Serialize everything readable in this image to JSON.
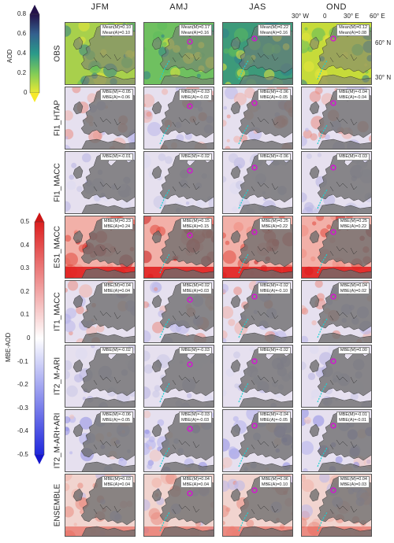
{
  "columns": [
    "JFM",
    "AMJ",
    "JAS",
    "OND"
  ],
  "rows": [
    "OBS",
    "FI1_HTAP",
    "FI1_MACC",
    "ES1_MACC",
    "IT1_MACC",
    "IT2_M-ARI",
    "IT2_M-ARI+ARI",
    "ENSEMBLE"
  ],
  "lon_labels": [
    "30° W",
    "0",
    "30° E",
    "60° E"
  ],
  "lat_labels": [
    "60° N",
    "30° N"
  ],
  "colorbar_obs": {
    "title": "AOD",
    "ticks": [
      "0.8",
      "0.6",
      "0.4",
      "0.2",
      "0"
    ],
    "colors": [
      "#24124a",
      "#33608e",
      "#2a9a8a",
      "#7fcb58",
      "#eaea33"
    ]
  },
  "colorbar_mbe": {
    "title": "MBE-AOD",
    "ticks": [
      "0.5",
      "0.4",
      "0.3",
      "0.2",
      "0.1",
      "0",
      "-0.1",
      "-0.2",
      "-0.3",
      "-0.4",
      "-0.5"
    ],
    "colors": [
      "#dd1f1f",
      "#ffffff",
      "#1f27dd"
    ]
  },
  "panels": [
    [
      "Mean(M)=0.10|Mean(A)=0.10",
      "Mean(M)=0.17|Mean(A)=0.16",
      "Mean(M)=0.22|Mean(A)=0.16",
      "Mean(M)=0.12|Mean(A)=0.08"
    ],
    [
      "MBE(M)=-0.05|MBE(A)=-0.06",
      "MBE(M)=-0.03|MBE(A)=-0.02",
      "MBE(M)=-0.06|MBE(A)=-0.05",
      "MBE(M)=-0.04|MBE(A)=-0.04"
    ],
    [
      "MBE(M)=-0.01",
      "MBE(M)=-0.02",
      "MBE(M)=-0.06",
      "MBE(M)=-0.03"
    ],
    [
      "MBE(M)=0.23|MBE(A)=0.24",
      "MBE(M)=0.15|MBE(A)=0.15",
      "MBE(M)=0.25|MBE(A)=0.22",
      "MBE(M)=0.25|MBE(A)=0.22"
    ],
    [
      "MBE(M)=0.04|MBE(A)=0.04",
      "MBE(M)=0.02|MBE(A)=0.03",
      "MBE(M)=-0.02|MBE(A)=-0.10",
      "MBE(M)=0.04|MBE(A)=0.02"
    ],
    [
      "MBE(M)=-0.02",
      "MBE(M)=-0.03",
      "MBE(M)=-0.02",
      "MBE(M)=0.00"
    ],
    [
      "MBE(M)=-0.06|MBE(A)=-0.05",
      "MBE(M)=-0.03|MBE(A)=-0.03",
      "MBE(M)=-0.04|MBE(A)=-0.05",
      "MBE(M)=-0.01|MBE(A)=-0.01"
    ],
    [
      "MBE(M)=0.03|MBE(A)=0.04",
      "MBE(M)=0.04|MBE(A)=0.04",
      "MBE(M)=0.06|MBE(A)=0.10",
      "MBE(M)=0.04|MBE(A)=0.03"
    ]
  ]
}
